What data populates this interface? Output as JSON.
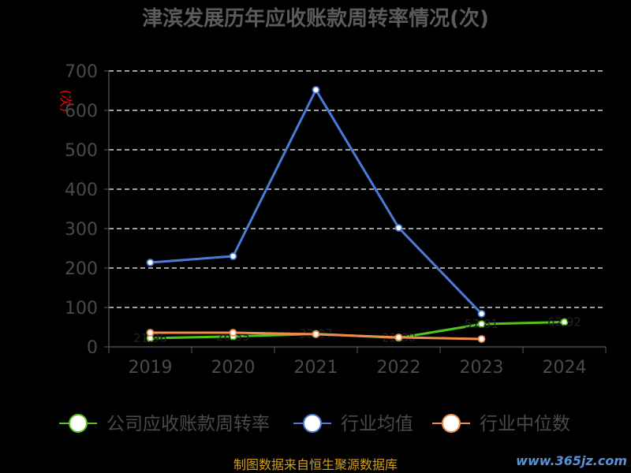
{
  "chart_data": {
    "type": "line",
    "title": "津滨发展历年应收账款周转率情况(次)",
    "ylabel": "(次)",
    "xlabel": "",
    "categories": [
      "2019",
      "2020",
      "2021",
      "2022",
      "2023",
      "2024"
    ],
    "ylim": [
      0,
      700
    ],
    "yticks": [
      "0",
      "100",
      "200",
      "300",
      "400",
      "500",
      "600",
      "700"
    ],
    "grid": true,
    "legend_position": "bottom",
    "series": [
      {
        "name": "公司应收账款周转率",
        "color": "#52c41a",
        "values": [
          21.96,
          26.35,
          33.07,
          22.8,
          57.81,
          62.92
        ]
      },
      {
        "name": "行业均值",
        "color": "#4a7bd8",
        "values": [
          214,
          230,
          652,
          302,
          84,
          null
        ]
      },
      {
        "name": "行业中位数",
        "color": "#f28a4a",
        "values": [
          36,
          36,
          32,
          24,
          20,
          null
        ]
      }
    ]
  },
  "footer": {
    "source": "制图数据来自恒生聚源数据库",
    "watermark": "www.365jz.com"
  }
}
